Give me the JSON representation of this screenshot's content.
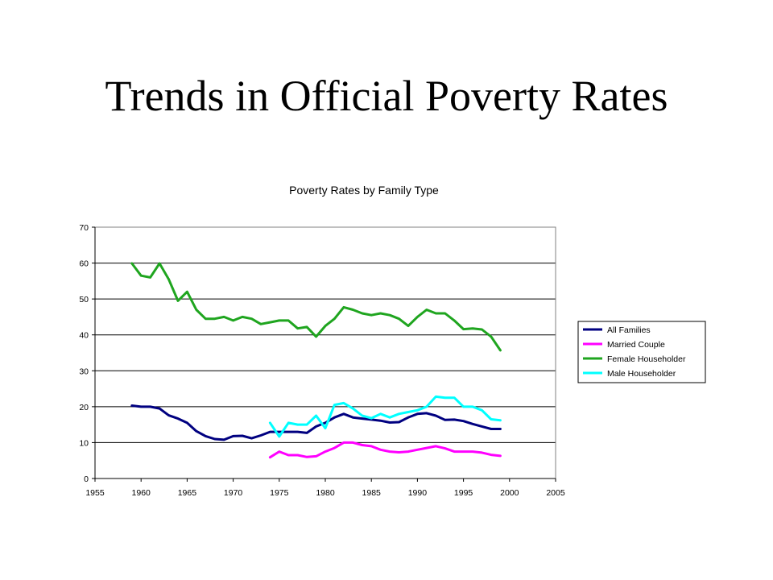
{
  "slide": {
    "title": "Trends in Official Poverty Rates"
  },
  "chart_data": {
    "type": "line",
    "title": "Poverty Rates by Family Type",
    "xlabel": "",
    "ylabel": "",
    "xlim": [
      1955,
      2005
    ],
    "ylim": [
      0,
      70
    ],
    "x_ticks": [
      1955,
      1960,
      1965,
      1970,
      1975,
      1980,
      1985,
      1990,
      1995,
      2000,
      2005
    ],
    "y_ticks": [
      0,
      10,
      20,
      30,
      40,
      50,
      60,
      70
    ],
    "grid": "horizontal",
    "legend_position": "right",
    "series": [
      {
        "name": "All Families",
        "color": "#000080",
        "x": [
          1959,
          1960,
          1961,
          1962,
          1963,
          1964,
          1965,
          1966,
          1967,
          1968,
          1969,
          1970,
          1971,
          1972,
          1973,
          1974,
          1975,
          1976,
          1977,
          1978,
          1979,
          1980,
          1981,
          1982,
          1983,
          1984,
          1985,
          1986,
          1987,
          1988,
          1989,
          1990,
          1991,
          1992,
          1993,
          1994,
          1995,
          1996,
          1997,
          1998,
          1999
        ],
        "y": [
          20.3,
          20.0,
          20.0,
          19.5,
          17.6,
          16.7,
          15.5,
          13.2,
          11.8,
          11.0,
          10.8,
          11.8,
          11.9,
          11.2,
          12.0,
          13.0,
          13.0,
          13.0,
          13.0,
          12.7,
          14.5,
          15.5,
          17.0,
          18.0,
          17.0,
          16.7,
          16.4,
          16.1,
          15.6,
          15.7,
          17.0,
          18.0,
          18.2,
          17.5,
          16.3,
          16.4,
          16.0,
          15.2,
          14.5,
          13.8,
          13.8
        ]
      },
      {
        "name": "Married Couple",
        "color": "#FF00FF",
        "x": [
          1974,
          1975,
          1976,
          1977,
          1978,
          1979,
          1980,
          1981,
          1982,
          1983,
          1984,
          1985,
          1986,
          1987,
          1988,
          1989,
          1990,
          1991,
          1992,
          1993,
          1994,
          1995,
          1996,
          1997,
          1998,
          1999
        ],
        "y": [
          5.9,
          7.5,
          6.5,
          6.5,
          6.0,
          6.2,
          7.5,
          8.5,
          10.0,
          10.0,
          9.3,
          9.0,
          8.0,
          7.5,
          7.3,
          7.5,
          8.0,
          8.5,
          9.0,
          8.4,
          7.5,
          7.5,
          7.5,
          7.2,
          6.6,
          6.3
        ]
      },
      {
        "name": "Female Householder",
        "color": "#1FA51F",
        "x": [
          1959,
          1960,
          1961,
          1962,
          1963,
          1964,
          1965,
          1966,
          1967,
          1968,
          1969,
          1970,
          1971,
          1972,
          1973,
          1974,
          1975,
          1976,
          1977,
          1978,
          1979,
          1980,
          1981,
          1982,
          1983,
          1984,
          1985,
          1986,
          1987,
          1988,
          1989,
          1990,
          1991,
          1992,
          1993,
          1994,
          1995,
          1996,
          1997,
          1998,
          1999
        ],
        "y": [
          59.9,
          56.5,
          56.0,
          59.9,
          55.5,
          49.5,
          52.0,
          47.0,
          44.5,
          44.5,
          45.0,
          44.0,
          45.0,
          44.5,
          43.0,
          43.5,
          44.0,
          44.0,
          41.8,
          42.2,
          39.5,
          42.5,
          44.5,
          47.7,
          47.0,
          46.0,
          45.5,
          46.0,
          45.5,
          44.5,
          42.5,
          45.0,
          47.0,
          46.0,
          46.0,
          44.0,
          41.6,
          41.8,
          41.5,
          39.5,
          35.7
        ]
      },
      {
        "name": "Male Householder",
        "color": "#00FFFF",
        "x": [
          1974,
          1975,
          1976,
          1977,
          1978,
          1979,
          1980,
          1981,
          1982,
          1983,
          1984,
          1985,
          1986,
          1987,
          1988,
          1989,
          1990,
          1991,
          1992,
          1993,
          1994,
          1995,
          1996,
          1997,
          1998,
          1999
        ],
        "y": [
          15.5,
          11.7,
          15.5,
          15.0,
          15.0,
          17.5,
          14.0,
          20.5,
          21.0,
          19.5,
          17.5,
          16.8,
          18.0,
          17.0,
          18.0,
          18.5,
          19.0,
          20.0,
          22.8,
          22.5,
          22.5,
          20.0,
          20.0,
          19.0,
          16.5,
          16.2
        ]
      }
    ]
  }
}
